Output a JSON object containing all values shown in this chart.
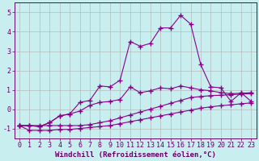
{
  "background_color": "#c8eef0",
  "grid_color": "#b0b0b0",
  "line_color": "#880088",
  "marker": "+",
  "marker_size": 4,
  "marker_lw": 1.0,
  "xlabel": "Windchill (Refroidissement éolien,°C)",
  "xlabel_color": "#660066",
  "xlabel_fontsize": 6.5,
  "tick_color": "#660066",
  "tick_fontsize": 6,
  "xlim": [
    -0.5,
    23.5
  ],
  "ylim": [
    -1.5,
    5.5
  ],
  "yticks": [
    -1,
    0,
    1,
    2,
    3,
    4,
    5
  ],
  "xticks": [
    0,
    1,
    2,
    3,
    4,
    5,
    6,
    7,
    8,
    9,
    10,
    11,
    12,
    13,
    14,
    15,
    16,
    17,
    18,
    19,
    20,
    21,
    22,
    23
  ],
  "series": [
    {
      "x": [
        0,
        1,
        2,
        3,
        4,
        5,
        6,
        7,
        8,
        9,
        10,
        11,
        12,
        13,
        14,
        15,
        16,
        17,
        18,
        19,
        20,
        21,
        22,
        23
      ],
      "y": [
        -0.85,
        -1.1,
        -1.1,
        -1.1,
        -1.05,
        -1.05,
        -1.0,
        -0.95,
        -0.9,
        -0.85,
        -0.75,
        -0.65,
        -0.55,
        -0.45,
        -0.35,
        -0.25,
        -0.15,
        -0.05,
        0.05,
        0.12,
        0.18,
        0.22,
        0.28,
        0.32
      ]
    },
    {
      "x": [
        0,
        1,
        2,
        3,
        4,
        5,
        6,
        7,
        8,
        9,
        10,
        11,
        12,
        13,
        14,
        15,
        16,
        17,
        18,
        19,
        20,
        21,
        22,
        23
      ],
      "y": [
        -0.85,
        -0.85,
        -0.85,
        -0.85,
        -0.85,
        -0.85,
        -0.85,
        -0.8,
        -0.7,
        -0.6,
        -0.45,
        -0.3,
        -0.15,
        0.0,
        0.15,
        0.3,
        0.45,
        0.6,
        0.65,
        0.7,
        0.72,
        0.75,
        0.78,
        0.8
      ]
    },
    {
      "x": [
        0,
        1,
        2,
        3,
        4,
        5,
        6,
        7,
        8,
        9,
        10,
        11,
        12,
        13,
        14,
        15,
        16,
        17,
        18,
        19,
        20,
        21,
        22,
        23
      ],
      "y": [
        -0.85,
        -0.85,
        -0.9,
        -0.7,
        -0.35,
        -0.25,
        -0.1,
        0.2,
        0.35,
        0.4,
        0.5,
        1.15,
        0.85,
        0.95,
        1.1,
        1.05,
        1.2,
        1.1,
        1.0,
        0.95,
        0.85,
        0.8,
        0.82,
        0.85
      ]
    },
    {
      "x": [
        0,
        1,
        2,
        3,
        4,
        5,
        6,
        7,
        8,
        9,
        10,
        11,
        12,
        13,
        14,
        15,
        16,
        17,
        18,
        19,
        20,
        21,
        22,
        23
      ],
      "y": [
        -0.85,
        -0.85,
        -0.9,
        -0.7,
        -0.35,
        -0.25,
        0.35,
        0.45,
        1.2,
        1.15,
        1.5,
        3.5,
        3.25,
        3.4,
        4.2,
        4.2,
        4.85,
        4.4,
        2.3,
        1.15,
        1.1,
        0.4,
        0.85,
        0.4
      ]
    }
  ]
}
